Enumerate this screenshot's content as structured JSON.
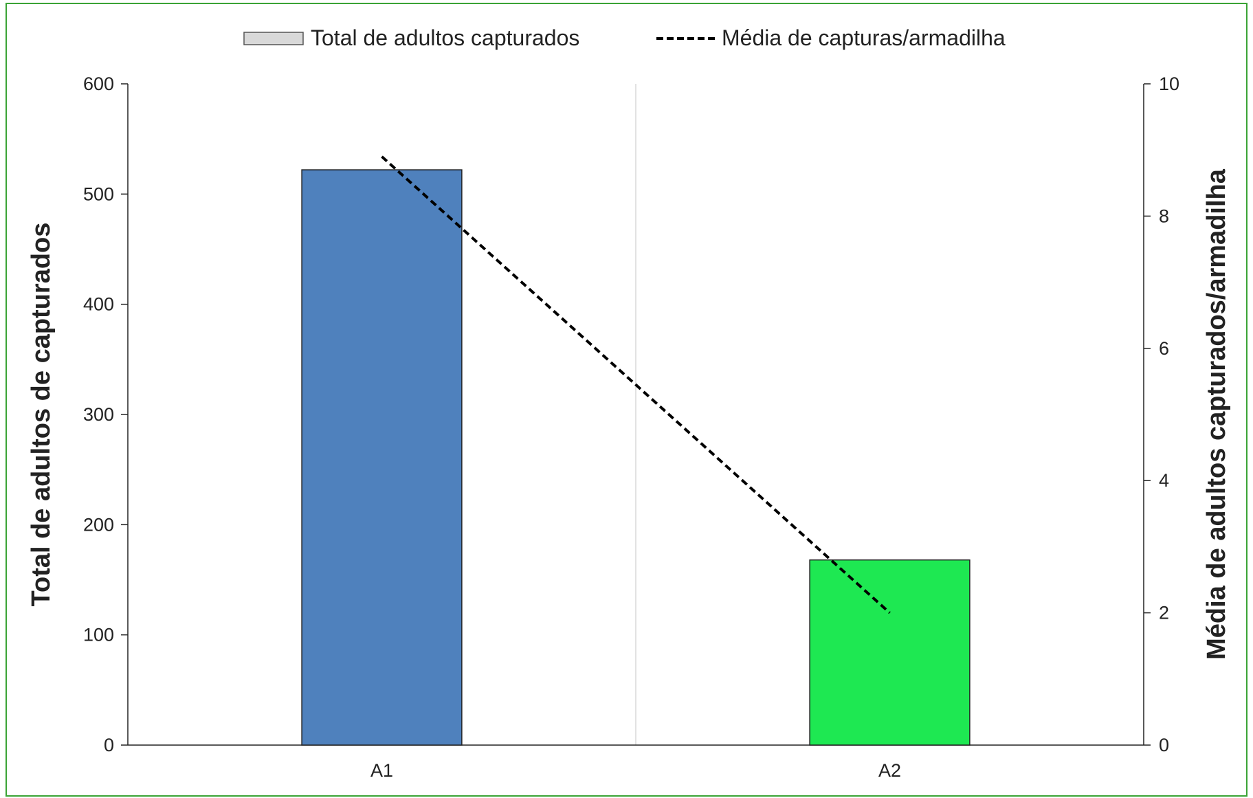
{
  "chart_data": {
    "type": "bar",
    "categories": [
      "A1",
      "A2"
    ],
    "series": [
      {
        "name": "Total de adultos capturados",
        "kind": "bar",
        "axis": "left",
        "values": [
          522,
          168
        ],
        "colors": [
          "#4f81bd",
          "#1ee852"
        ]
      },
      {
        "name": "Média de capturas/armadilha",
        "kind": "line",
        "axis": "right",
        "style": "dashed",
        "color": "#000000",
        "values": [
          8.9,
          2.0
        ]
      }
    ],
    "ylabel": "Total de adultos de capturados",
    "y2label": "Média de adultos capturados/armadilha",
    "ylim": [
      0,
      600
    ],
    "y2lim": [
      0,
      10
    ],
    "yticks": [
      "0",
      "100",
      "200",
      "300",
      "400",
      "500",
      "600"
    ],
    "y2ticks": [
      "0",
      "2",
      "4",
      "6",
      "8",
      "10"
    ],
    "legend": {
      "position": "top",
      "bar_label": "Total de adultos capturados",
      "line_label": "Média de capturas/armadilha",
      "bar_swatch_color": "#d9d9d9"
    },
    "grid": false,
    "category_separator": true
  }
}
